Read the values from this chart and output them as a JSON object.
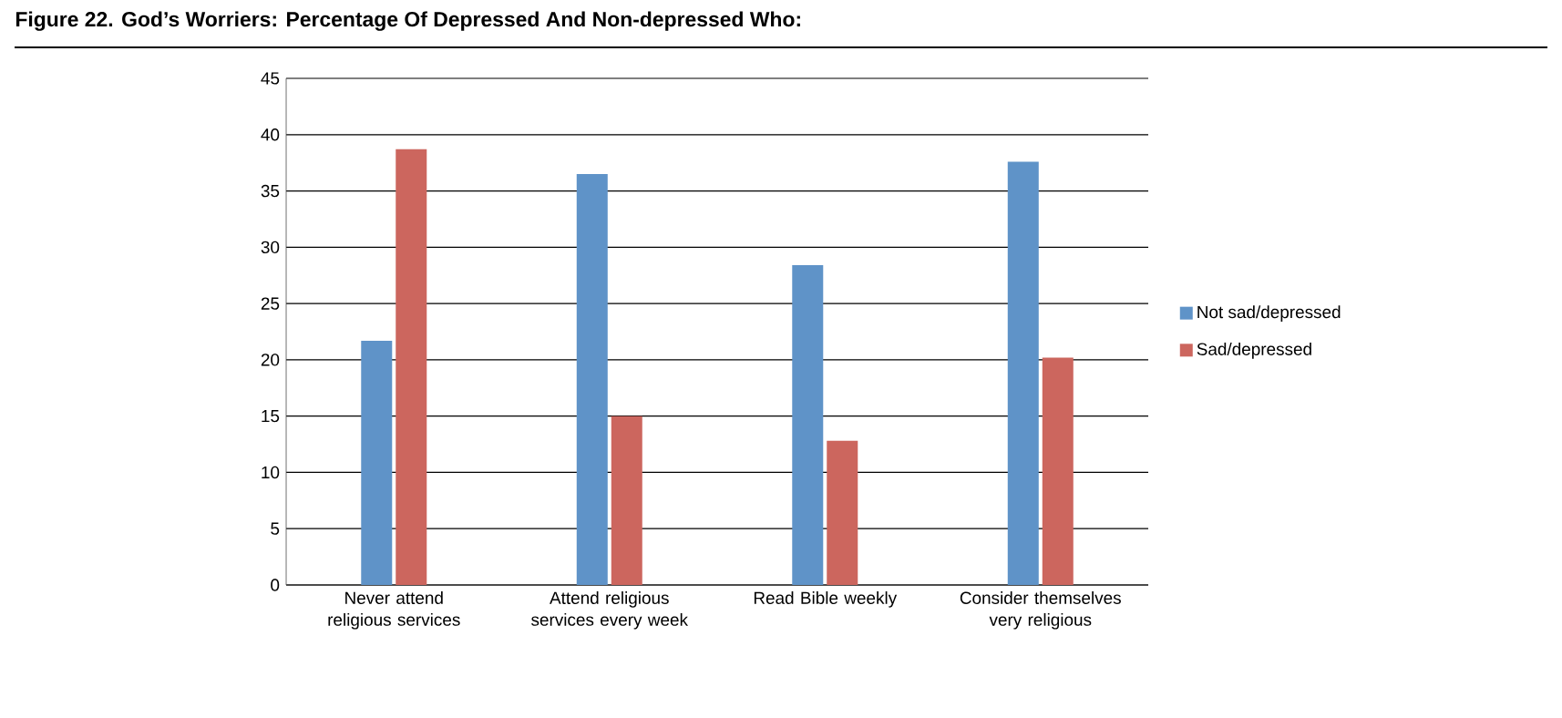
{
  "chart_data": {
    "type": "bar",
    "title": "Figure 22. God’s Worriers: Percentage Of Depressed And Non-depressed Who:",
    "categories": [
      "Never attend religious services",
      "Attend religious services every week",
      "Read Bible weekly",
      "Consider themselves very religious"
    ],
    "series": [
      {
        "name": "Not sad/depressed",
        "color": "#5f93c8",
        "values": [
          21.7,
          36.5,
          28.4,
          37.6
        ]
      },
      {
        "name": "Sad/depressed",
        "color": "#cc665e",
        "values": [
          38.7,
          15.0,
          12.8,
          20.2
        ]
      }
    ],
    "ylim": [
      0,
      45
    ],
    "yticks": [
      0,
      5,
      10,
      15,
      20,
      25,
      30,
      35,
      40,
      45
    ],
    "grid": "y",
    "legend": "right"
  }
}
